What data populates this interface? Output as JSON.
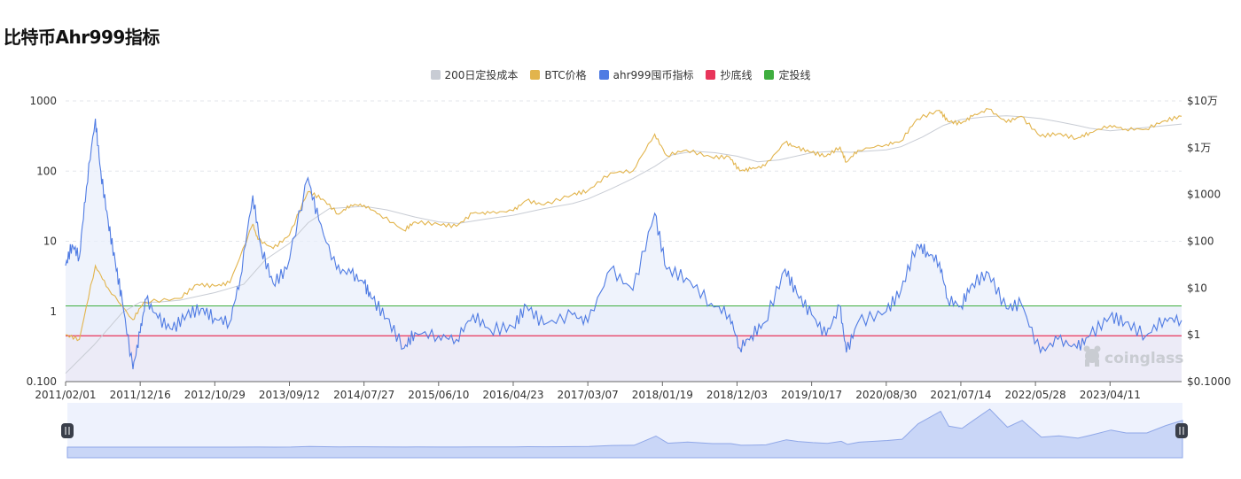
{
  "page": {
    "title": "比特币Ahr999指标"
  },
  "legend": [
    {
      "label": "200日定投成本",
      "color": "#c8ccd4"
    },
    {
      "label": "BTC价格",
      "color": "#e2b44c"
    },
    {
      "label": "ahr999囤币指标",
      "color": "#4f7be3"
    },
    {
      "label": "抄底线",
      "color": "#e8355a"
    },
    {
      "label": "定投线",
      "color": "#3fae3f"
    }
  ],
  "watermark": "coinglass",
  "chart_data": {
    "type": "line",
    "x_tick_labels": [
      "2011/02/01",
      "2011/12/16",
      "2012/10/29",
      "2013/09/12",
      "2014/07/27",
      "2015/06/10",
      "2016/04/23",
      "2017/03/07",
      "2018/01/19",
      "2018/12/03",
      "2019/10/17",
      "2020/08/30",
      "2021/07/14",
      "2022/05/28",
      "2023/04/11"
    ],
    "x_range": [
      "2011/02/01",
      "2024/02/10"
    ],
    "y_left": {
      "scale": "log",
      "range": [
        0.1,
        1000
      ],
      "tick_labels": [
        "0.100",
        "1",
        "10",
        "100",
        "1000"
      ]
    },
    "y_right": {
      "scale": "log",
      "range": [
        0.1,
        100000
      ],
      "tick_labels": [
        "$0.1000",
        "$1",
        "$10",
        "$100",
        "$1000",
        "$1万",
        "$10万"
      ]
    },
    "grid": true,
    "legend_position": "top-center",
    "thresholds": [
      {
        "name": "抄底线",
        "value": 0.45,
        "axis": "left",
        "color": "#e8355a"
      },
      {
        "name": "定投线",
        "value": 1.2,
        "axis": "left",
        "color": "#3fae3f"
      }
    ],
    "series": [
      {
        "name": "ahr999囤币指标",
        "axis": "left",
        "color": "#4f7be3",
        "points": [
          [
            "2011/02/01",
            4.5
          ],
          [
            "2011/03/01",
            9
          ],
          [
            "2011/04/01",
            6
          ],
          [
            "2011/05/01",
            60
          ],
          [
            "2011/06/08",
            560
          ],
          [
            "2011/07/01",
            100
          ],
          [
            "2011/08/01",
            20
          ],
          [
            "2011/09/01",
            5
          ],
          [
            "2011/10/01",
            1.4
          ],
          [
            "2011/11/15",
            0.15
          ],
          [
            "2011/12/16",
            0.5
          ],
          [
            "2012/01/10",
            1.5
          ],
          [
            "2012/03/01",
            0.8
          ],
          [
            "2012/05/01",
            0.55
          ],
          [
            "2012/07/01",
            0.9
          ],
          [
            "2012/09/01",
            1.1
          ],
          [
            "2012/10/29",
            0.8
          ],
          [
            "2013/01/01",
            0.7
          ],
          [
            "2013/02/15",
            3
          ],
          [
            "2013/04/09",
            45
          ],
          [
            "2013/05/15",
            8
          ],
          [
            "2013/07/05",
            2.5
          ],
          [
            "2013/09/01",
            4
          ],
          [
            "2013/11/30",
            80
          ],
          [
            "2014/01/15",
            20
          ],
          [
            "2014/04/01",
            4
          ],
          [
            "2014/06/01",
            3.5
          ],
          [
            "2014/07/27",
            2.5
          ],
          [
            "2014/09/01",
            1.5
          ],
          [
            "2014/11/01",
            0.8
          ],
          [
            "2015/01/14",
            0.3
          ],
          [
            "2015/03/01",
            0.5
          ],
          [
            "2015/06/10",
            0.45
          ],
          [
            "2015/08/25",
            0.4
          ],
          [
            "2015/11/04",
            0.9
          ],
          [
            "2016/01/15",
            0.55
          ],
          [
            "2016/04/23",
            0.6
          ],
          [
            "2016/06/18",
            1.2
          ],
          [
            "2016/09/01",
            0.65
          ],
          [
            "2017/01/01",
            0.9
          ],
          [
            "2017/03/07",
            0.7
          ],
          [
            "2017/06/12",
            4
          ],
          [
            "2017/09/15",
            2
          ],
          [
            "2017/12/17",
            25
          ],
          [
            "2018/02/06",
            4
          ],
          [
            "2018/05/01",
            3
          ],
          [
            "2018/08/15",
            1.3
          ],
          [
            "2018/11/01",
            0.9
          ],
          [
            "2018/12/15",
            0.3
          ],
          [
            "2019/02/01",
            0.45
          ],
          [
            "2019/04/01",
            0.7
          ],
          [
            "2019/06/26",
            4
          ],
          [
            "2019/08/15",
            1.8
          ],
          [
            "2019/10/17",
            0.9
          ],
          [
            "2019/12/18",
            0.45
          ],
          [
            "2020/02/15",
            1.2
          ],
          [
            "2020/03/13",
            0.26
          ],
          [
            "2020/05/01",
            0.7
          ],
          [
            "2020/08/30",
            1
          ],
          [
            "2020/11/01",
            2
          ],
          [
            "2021/01/08",
            9
          ],
          [
            "2021/02/21",
            7
          ],
          [
            "2021/04/14",
            5
          ],
          [
            "2021/05/19",
            1.5
          ],
          [
            "2021/07/14",
            1.2
          ],
          [
            "2021/09/01",
            2.5
          ],
          [
            "2021/11/10",
            3.5
          ],
          [
            "2022/01/24",
            1.1
          ],
          [
            "2022/03/28",
            1.3
          ],
          [
            "2022/06/18",
            0.26
          ],
          [
            "2022/09/01",
            0.4
          ],
          [
            "2022/11/21",
            0.3
          ],
          [
            "2023/01/15",
            0.45
          ],
          [
            "2023/04/11",
            0.85
          ],
          [
            "2023/06/15",
            0.7
          ],
          [
            "2023/09/11",
            0.45
          ],
          [
            "2023/12/01",
            0.8
          ],
          [
            "2024/02/10",
            0.75
          ]
        ]
      },
      {
        "name": "BTC价格",
        "axis": "right",
        "color": "#e2b44c",
        "points": [
          [
            "2011/02/01",
            1
          ],
          [
            "2011/04/01",
            0.8
          ],
          [
            "2011/06/08",
            30
          ],
          [
            "2011/08/01",
            10
          ],
          [
            "2011/11/15",
            2.1
          ],
          [
            "2012/01/01",
            5
          ],
          [
            "2012/06/01",
            6
          ],
          [
            "2012/08/15",
            12
          ],
          [
            "2012/10/29",
            11
          ],
          [
            "2013/01/01",
            13
          ],
          [
            "2013/04/09",
            230
          ],
          [
            "2013/05/01",
            110
          ],
          [
            "2013/07/05",
            70
          ],
          [
            "2013/09/12",
            135
          ],
          [
            "2013/11/30",
            1150
          ],
          [
            "2014/02/01",
            800
          ],
          [
            "2014/04/10",
            380
          ],
          [
            "2014/06/01",
            600
          ],
          [
            "2014/07/27",
            590
          ],
          [
            "2014/10/01",
            380
          ],
          [
            "2015/01/14",
            170
          ],
          [
            "2015/03/01",
            260
          ],
          [
            "2015/06/10",
            230
          ],
          [
            "2015/08/25",
            210
          ],
          [
            "2015/11/04",
            400
          ],
          [
            "2016/01/15",
            400
          ],
          [
            "2016/04/23",
            450
          ],
          [
            "2016/06/18",
            750
          ],
          [
            "2016/09/01",
            600
          ],
          [
            "2017/01/01",
            1000
          ],
          [
            "2017/03/07",
            1200
          ],
          [
            "2017/06/12",
            2900
          ],
          [
            "2017/09/15",
            3200
          ],
          [
            "2017/12/17",
            19500
          ],
          [
            "2018/02/06",
            6800
          ],
          [
            "2018/05/01",
            9000
          ],
          [
            "2018/08/15",
            6300
          ],
          [
            "2018/11/01",
            6300
          ],
          [
            "2018/12/15",
            3200
          ],
          [
            "2019/02/01",
            3500
          ],
          [
            "2019/04/01",
            4100
          ],
          [
            "2019/06/26",
            13000
          ],
          [
            "2019/08/15",
            10000
          ],
          [
            "2019/10/17",
            8000
          ],
          [
            "2019/12/18",
            6600
          ],
          [
            "2020/02/15",
            10300
          ],
          [
            "2020/03/13",
            4900
          ],
          [
            "2020/05/01",
            8800
          ],
          [
            "2020/08/30",
            11700
          ],
          [
            "2020/11/01",
            13800
          ],
          [
            "2021/01/08",
            41000
          ],
          [
            "2021/04/14",
            63000
          ],
          [
            "2021/05/19",
            37000
          ],
          [
            "2021/07/14",
            32800
          ],
          [
            "2021/09/01",
            47000
          ],
          [
            "2021/11/10",
            67000
          ],
          [
            "2022/01/24",
            35000
          ],
          [
            "2022/03/28",
            47000
          ],
          [
            "2022/06/18",
            17600
          ],
          [
            "2022/09/01",
            20000
          ],
          [
            "2022/11/21",
            15800
          ],
          [
            "2023/01/15",
            21000
          ],
          [
            "2023/04/11",
            30000
          ],
          [
            "2023/06/15",
            25000
          ],
          [
            "2023/09/11",
            25000
          ],
          [
            "2023/12/01",
            38000
          ],
          [
            "2024/02/10",
            47000
          ]
        ]
      },
      {
        "name": "200日定投成本",
        "axis": "right",
        "color": "#c8ccd4",
        "points": [
          [
            "2011/02/01",
            0.15
          ],
          [
            "2011/06/01",
            0.6
          ],
          [
            "2011/10/01",
            3
          ],
          [
            "2011/12/16",
            5
          ],
          [
            "2012/03/01",
            5
          ],
          [
            "2012/06/01",
            5.5
          ],
          [
            "2012/10/29",
            8
          ],
          [
            "2013/03/01",
            12
          ],
          [
            "2013/06/01",
            40
          ],
          [
            "2013/09/12",
            90
          ],
          [
            "2013/12/01",
            250
          ],
          [
            "2014/03/01",
            500
          ],
          [
            "2014/07/27",
            560
          ],
          [
            "2014/11/01",
            470
          ],
          [
            "2015/03/01",
            330
          ],
          [
            "2015/06/10",
            260
          ],
          [
            "2015/09/01",
            240
          ],
          [
            "2016/01/01",
            300
          ],
          [
            "2016/04/23",
            360
          ],
          [
            "2016/09/01",
            500
          ],
          [
            "2017/01/01",
            640
          ],
          [
            "2017/03/07",
            800
          ],
          [
            "2017/06/12",
            1300
          ],
          [
            "2017/09/15",
            2200
          ],
          [
            "2017/12/17",
            4000
          ],
          [
            "2018/03/01",
            7000
          ],
          [
            "2018/06/01",
            8400
          ],
          [
            "2018/09/01",
            7800
          ],
          [
            "2018/12/03",
            6600
          ],
          [
            "2019/03/01",
            5000
          ],
          [
            "2019/06/01",
            5500
          ],
          [
            "2019/10/17",
            7800
          ],
          [
            "2020/01/01",
            8300
          ],
          [
            "2020/04/01",
            8000
          ],
          [
            "2020/08/30",
            9000
          ],
          [
            "2020/11/01",
            10500
          ],
          [
            "2021/02/01",
            17000
          ],
          [
            "2021/05/01",
            30000
          ],
          [
            "2021/07/14",
            40000
          ],
          [
            "2021/11/01",
            46000
          ],
          [
            "2022/01/24",
            48000
          ],
          [
            "2022/04/01",
            46000
          ],
          [
            "2022/06/18",
            42000
          ],
          [
            "2022/09/01",
            36000
          ],
          [
            "2022/11/21",
            30000
          ],
          [
            "2023/01/15",
            26000
          ],
          [
            "2023/04/11",
            23000
          ],
          [
            "2023/09/11",
            27000
          ],
          [
            "2024/02/10",
            32000
          ]
        ]
      }
    ]
  }
}
